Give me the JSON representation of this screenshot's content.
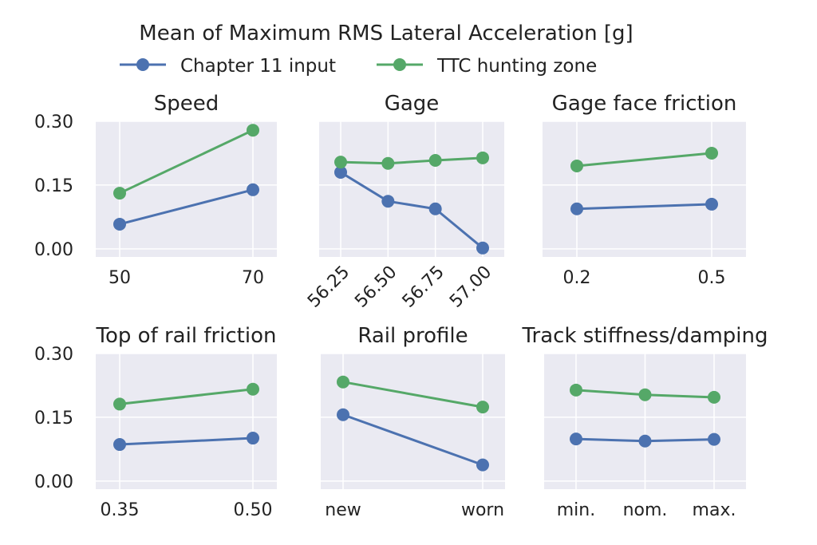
{
  "chart_data": {
    "type": "line",
    "title": "Mean of Maximum RMS Lateral Acceleration [g]",
    "legend": {
      "placement": "top-center",
      "entries": [
        "Chapter 11 input",
        "TTC hunting zone"
      ]
    },
    "colors": {
      "Chapter 11 input": "#4c72b0",
      "TTC hunting zone": "#55a868",
      "panel_background": "#eaeaf2",
      "grid": "#ffffff"
    },
    "ylim": [
      -0.019,
      0.3
    ],
    "yticks": [
      "0.00",
      "0.15",
      "0.30"
    ],
    "ytick_values": [
      0,
      0.15,
      0.3
    ],
    "grid": true,
    "panels": [
      {
        "title": "Speed",
        "categories": [
          "50",
          "70"
        ],
        "series": [
          {
            "name": "Chapter 11 input",
            "values": [
              0.058,
              0.139
            ]
          },
          {
            "name": "TTC hunting zone",
            "values": [
              0.131,
              0.279
            ]
          }
        ]
      },
      {
        "title": "Gage",
        "categories": [
          "56.25",
          "56.50",
          "56.75",
          "57.00"
        ],
        "rotated_ticks": true,
        "series": [
          {
            "name": "Chapter 11 input",
            "values": [
              0.18,
              0.112,
              0.094,
              0.002
            ]
          },
          {
            "name": "TTC hunting zone",
            "values": [
              0.204,
              0.201,
              0.208,
              0.214
            ]
          }
        ]
      },
      {
        "title": "Gage face friction",
        "categories": [
          "0.2",
          "0.5"
        ],
        "series": [
          {
            "name": "Chapter 11 input",
            "values": [
              0.094,
              0.105
            ]
          },
          {
            "name": "TTC hunting zone",
            "values": [
              0.195,
              0.225
            ]
          }
        ]
      },
      {
        "title": "Top of rail friction",
        "categories": [
          "0.35",
          "0.50"
        ],
        "series": [
          {
            "name": "Chapter 11 input",
            "values": [
              0.086,
              0.101
            ]
          },
          {
            "name": "TTC hunting zone",
            "values": [
              0.181,
              0.216
            ]
          }
        ]
      },
      {
        "title": "Rail profile",
        "categories": [
          "new",
          "worn"
        ],
        "series": [
          {
            "name": "Chapter 11 input",
            "values": [
              0.156,
              0.038
            ]
          },
          {
            "name": "TTC hunting zone",
            "values": [
              0.233,
              0.174
            ]
          }
        ]
      },
      {
        "title": "Track stiffness/damping",
        "categories": [
          "min.",
          "nom.",
          "max."
        ],
        "series": [
          {
            "name": "Chapter 11 input",
            "values": [
              0.099,
              0.094,
              0.098
            ]
          },
          {
            "name": "TTC hunting zone",
            "values": [
              0.214,
              0.203,
              0.197
            ]
          }
        ]
      }
    ]
  }
}
